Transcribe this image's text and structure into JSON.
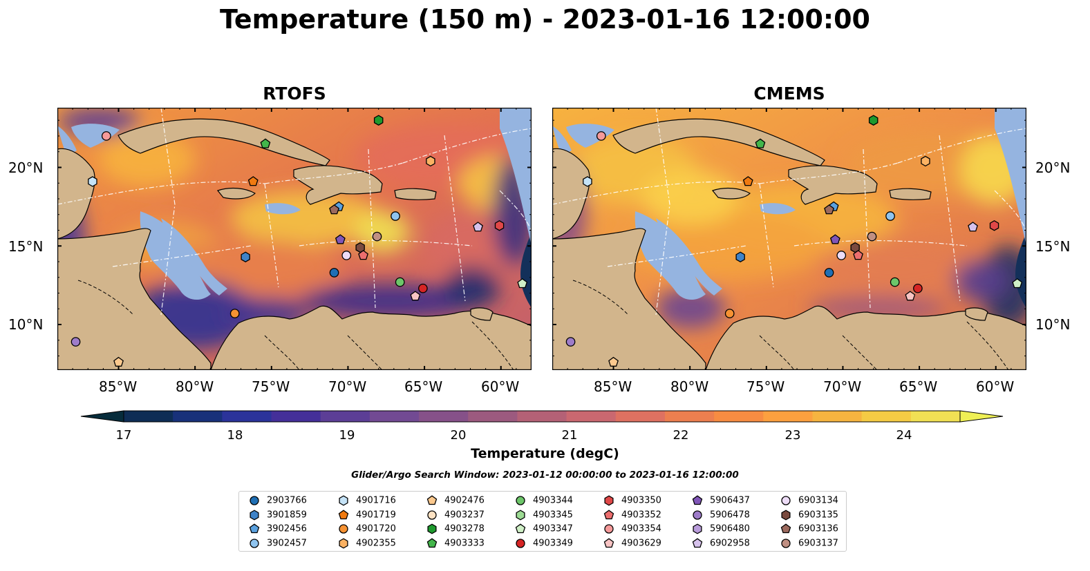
{
  "title": "Temperature (150 m) - 2023-01-16 12:00:00",
  "panels": [
    {
      "id": "rtofs",
      "title": "RTOFS"
    },
    {
      "id": "cmems",
      "title": "CMEMS"
    }
  ],
  "axes": {
    "lat_labels": [
      "20°N",
      "15°N",
      "10°N"
    ],
    "lon_labels": [
      "85°W",
      "80°W",
      "75°W",
      "70°W",
      "65°W",
      "60°W"
    ]
  },
  "colorbar": {
    "label": "Temperature (degC)",
    "ticks": [
      "17",
      "18",
      "19",
      "20",
      "21",
      "22",
      "23",
      "24"
    ],
    "range": [
      17,
      24.5
    ],
    "colors": [
      "#062c3b",
      "#0e2d55",
      "#18317a",
      "#2b339a",
      "#442f99",
      "#5c3e96",
      "#724a93",
      "#865189",
      "#9c5a7f",
      "#b46176",
      "#ca6870",
      "#de7161",
      "#ec7f4f",
      "#f78c42",
      "#fca03f",
      "#f6b440",
      "#f5cb44",
      "#f1e054",
      "#eff055"
    ],
    "extend": "both"
  },
  "search_window": "Glider/Argo Search Window: 2023-01-12 00:00:00 to 2023-01-16 12:00:00",
  "legend": [
    {
      "id": "2903766",
      "marker": "circle",
      "color": "#1f6fb4"
    },
    {
      "id": "3901859",
      "marker": "hexagon",
      "color": "#3f83c8"
    },
    {
      "id": "3902456",
      "marker": "pentagon",
      "color": "#5aa1df"
    },
    {
      "id": "3902457",
      "marker": "circle",
      "color": "#8fc4ef"
    },
    {
      "id": "4901716",
      "marker": "hexagon",
      "color": "#c5e3f7"
    },
    {
      "id": "4901719",
      "marker": "pentagon",
      "color": "#f07a10"
    },
    {
      "id": "4901720",
      "marker": "circle",
      "color": "#f69233"
    },
    {
      "id": "4902355",
      "marker": "hexagon",
      "color": "#fbb263"
    },
    {
      "id": "4902476",
      "marker": "pentagon",
      "color": "#fcc98e"
    },
    {
      "id": "4903237",
      "marker": "circle",
      "color": "#fde2c3"
    },
    {
      "id": "4903278",
      "marker": "hexagon",
      "color": "#1e9a2e"
    },
    {
      "id": "4903333",
      "marker": "pentagon",
      "color": "#43b64b"
    },
    {
      "id": "4903344",
      "marker": "circle",
      "color": "#6dc66a"
    },
    {
      "id": "4903345",
      "marker": "hexagon",
      "color": "#9ddb94"
    },
    {
      "id": "4903347",
      "marker": "pentagon",
      "color": "#cfefc6"
    },
    {
      "id": "4903349",
      "marker": "circle",
      "color": "#d62525"
    },
    {
      "id": "4903350",
      "marker": "hexagon",
      "color": "#e04848"
    },
    {
      "id": "4903352",
      "marker": "pentagon",
      "color": "#ec6e6e"
    },
    {
      "id": "4903354",
      "marker": "circle",
      "color": "#f59a9a"
    },
    {
      "id": "4903629",
      "marker": "pentagon",
      "color": "#f9c4c4"
    },
    {
      "id": "5906437",
      "marker": "pentagon",
      "color": "#8156b8"
    },
    {
      "id": "5906478",
      "marker": "circle",
      "color": "#9e7cc9"
    },
    {
      "id": "5906480",
      "marker": "hexagon",
      "color": "#b99cdb"
    },
    {
      "id": "6902958",
      "marker": "pentagon",
      "color": "#d6c2ec"
    },
    {
      "id": "6903134",
      "marker": "circle",
      "color": "#eddcf7"
    },
    {
      "id": "6903135",
      "marker": "hexagon",
      "color": "#7a4a3f"
    },
    {
      "id": "6903136",
      "marker": "pentagon",
      "color": "#9c6a5e"
    },
    {
      "id": "6903137",
      "marker": "circle",
      "color": "#c08f82"
    }
  ],
  "floats": [
    {
      "id": "2903766",
      "lon": -70.9,
      "lat": 13.3
    },
    {
      "id": "3901859",
      "lon": -76.7,
      "lat": 14.3
    },
    {
      "id": "3902456",
      "lon": -70.6,
      "lat": 17.5
    },
    {
      "id": "3902457",
      "lon": -66.9,
      "lat": 16.9
    },
    {
      "id": "4901716",
      "lon": -86.7,
      "lat": 19.1
    },
    {
      "id": "4901719",
      "lon": -76.2,
      "lat": 19.1
    },
    {
      "id": "4901720",
      "lon": -77.4,
      "lat": 10.7
    },
    {
      "id": "4902355",
      "lon": -64.6,
      "lat": 20.4
    },
    {
      "id": "4902476",
      "lon": -85.0,
      "lat": 7.6
    },
    {
      "id": "4903278",
      "lon": -68.0,
      "lat": 23.0
    },
    {
      "id": "4903333",
      "lon": -75.4,
      "lat": 21.5
    },
    {
      "id": "4903344",
      "lon": -66.6,
      "lat": 12.7
    },
    {
      "id": "4903347",
      "lon": -58.6,
      "lat": 12.6
    },
    {
      "id": "4903349",
      "lon": -65.1,
      "lat": 12.3
    },
    {
      "id": "4903352",
      "lon": -69.0,
      "lat": 14.4
    },
    {
      "id": "4903354",
      "lon": -85.8,
      "lat": 22.0
    },
    {
      "id": "4903629",
      "lon": -65.6,
      "lat": 11.8
    },
    {
      "id": "5906437",
      "lon": -70.5,
      "lat": 15.4
    },
    {
      "id": "5906478",
      "lon": -87.8,
      "lat": 8.9
    },
    {
      "id": "6902958",
      "lon": -61.5,
      "lat": 16.2
    },
    {
      "id": "6903134",
      "lon": -70.1,
      "lat": 14.4
    },
    {
      "id": "6903135",
      "lon": -69.2,
      "lat": 14.9
    },
    {
      "id": "6903136",
      "lon": -70.9,
      "lat": 17.3
    },
    {
      "id": "6903137",
      "lon": -68.1,
      "lat": 15.6
    },
    {
      "id": "4903350",
      "lon": -60.1,
      "lat": 16.3
    }
  ]
}
